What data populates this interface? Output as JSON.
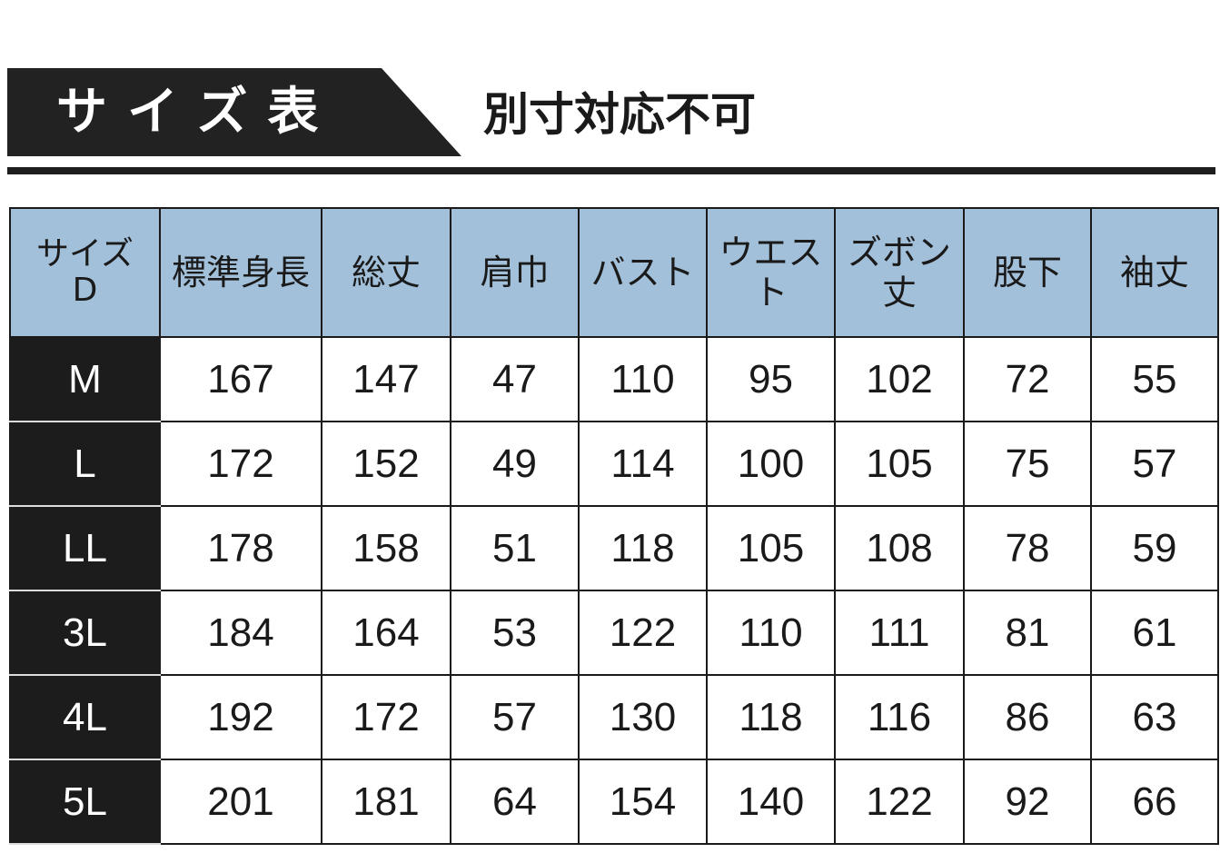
{
  "header": {
    "title": "サイズ表",
    "note": "別寸対応不可"
  },
  "table": {
    "columns": [
      "サイズ\nD",
      "標準身長",
      "総丈",
      "肩巾",
      "バスト",
      "ウエスト",
      "ズボン丈",
      "股下",
      "袖丈"
    ],
    "rows": [
      [
        "M",
        "167",
        "147",
        "47",
        "110",
        "95",
        "102",
        "72",
        "55"
      ],
      [
        "L",
        "172",
        "152",
        "49",
        "114",
        "100",
        "105",
        "75",
        "57"
      ],
      [
        "LL",
        "178",
        "158",
        "51",
        "118",
        "105",
        "108",
        "78",
        "59"
      ],
      [
        "3L",
        "184",
        "164",
        "53",
        "122",
        "110",
        "111",
        "81",
        "61"
      ],
      [
        "4L",
        "192",
        "172",
        "57",
        "130",
        "118",
        "116",
        "86",
        "63"
      ],
      [
        "5L",
        "201",
        "181",
        "64",
        "154",
        "140",
        "122",
        "92",
        "66"
      ]
    ]
  },
  "colors": {
    "header_bg": "#a3c0da",
    "size_col_bg": "#1c1c1c",
    "banner_bg": "#222222"
  }
}
